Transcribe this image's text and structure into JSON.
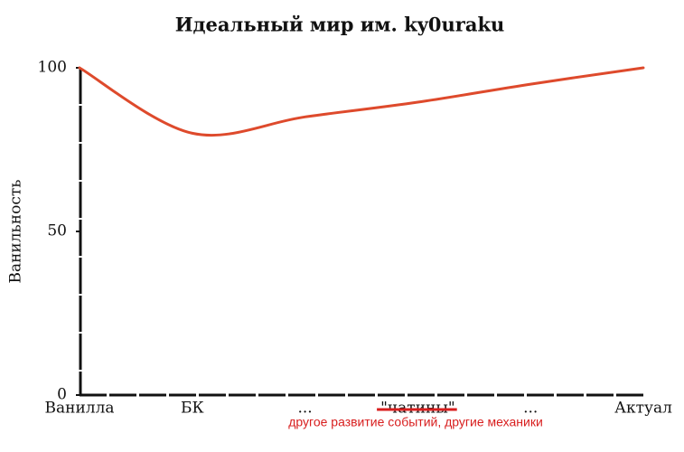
{
  "chart_data": {
    "type": "line",
    "title": "Идеальный мир им. ky0uraku",
    "ylabel": "Ванильность",
    "categories": [
      "Ванилла",
      "БК",
      "...",
      "\"чатины\"",
      "...",
      "Актуал"
    ],
    "series": [
      {
        "name": "Ванильность",
        "color": "#de4a2c",
        "values": [
          100,
          80,
          85,
          89.5,
          95,
          100
        ]
      }
    ],
    "ylim": [
      0,
      100
    ],
    "yticks": [
      0,
      50,
      100
    ],
    "annotation": "другое развитие событий, другие механики"
  }
}
